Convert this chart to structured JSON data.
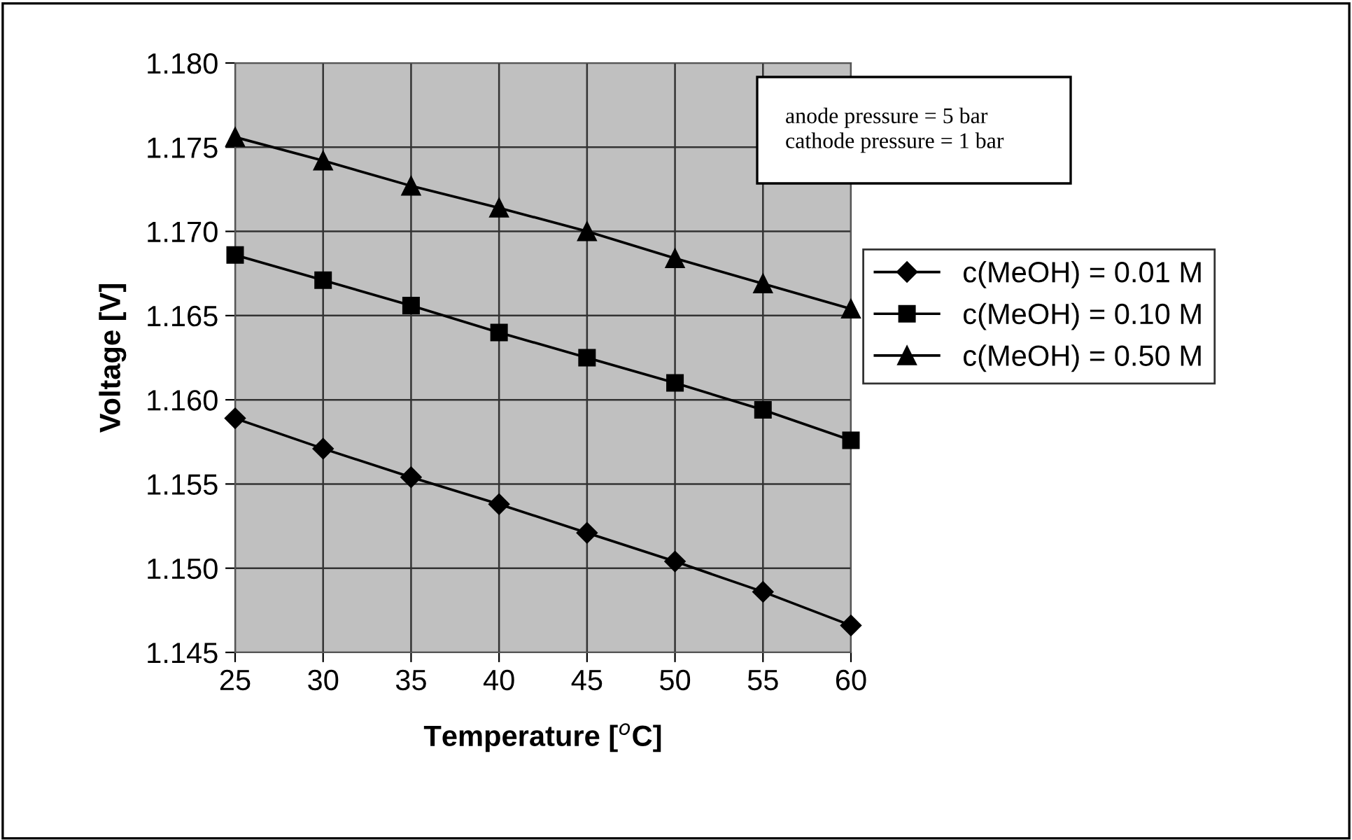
{
  "chart_data": {
    "type": "line",
    "xlabel": "Temperature [$^{o}$C]",
    "ylabel": "Voltage [V]",
    "x": [
      25,
      30,
      35,
      40,
      45,
      50,
      55,
      60
    ],
    "series": [
      {
        "name": "c(MeOH) = 0.01 M",
        "color": "#000000",
        "marker": "diamond",
        "values": [
          1.1589,
          1.1571,
          1.1554,
          1.1538,
          1.1521,
          1.1504,
          1.1486,
          1.1466
        ]
      },
      {
        "name": "c(MeOH) = 0.10 M",
        "color": "#000000",
        "marker": "square",
        "values": [
          1.1686,
          1.1671,
          1.1656,
          1.164,
          1.1625,
          1.161,
          1.1594,
          1.1576
        ]
      },
      {
        "name": "c(MeOH) = 0.50 M",
        "color": "#000000",
        "marker": "triangle",
        "values": [
          1.1756,
          1.1742,
          1.1727,
          1.1714,
          1.17,
          1.1684,
          1.1669,
          1.1654
        ]
      }
    ],
    "xlim": [
      25,
      60
    ],
    "xticks": [
      25,
      30,
      35,
      40,
      45,
      50,
      55,
      60
    ],
    "ylim": [
      1.145,
      1.18
    ],
    "yticks": [
      {
        "value": 1.145,
        "label": "1.145"
      },
      {
        "value": 1.15,
        "label": "1.150"
      },
      {
        "value": 1.155,
        "label": "1.155"
      },
      {
        "value": 1.16,
        "label": "1.160"
      },
      {
        "value": 1.165,
        "label": "1.165"
      },
      {
        "value": 1.17,
        "label": "1.170"
      },
      {
        "value": 1.175,
        "label": "1.175"
      },
      {
        "value": 1.18,
        "label": "1.180"
      }
    ],
    "grid": true,
    "legend": "right",
    "line_style": "solid",
    "annotations": [
      "anode pressure = 5 bar\ncathode pressure = 1 bar"
    ]
  }
}
